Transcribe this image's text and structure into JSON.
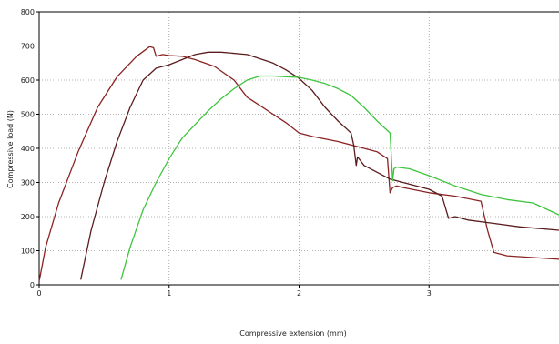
{
  "chart_data": {
    "type": "line",
    "title": "",
    "xlabel": "Compressive extension (mm)",
    "ylabel": "Compressive load (N)",
    "xlim": [
      0,
      4
    ],
    "ylim": [
      0,
      800
    ],
    "x_ticks": [
      0,
      1,
      2,
      3
    ],
    "y_ticks": [
      0,
      100,
      200,
      300,
      400,
      500,
      600,
      700,
      800
    ],
    "x_tick_labels": [
      "0",
      "1",
      "2",
      "3"
    ],
    "y_tick_labels": [
      "0",
      "100",
      "200",
      "300",
      "400",
      "500",
      "600",
      "700",
      "800"
    ],
    "grid": "dotted",
    "legend": "none",
    "series": [
      {
        "color": "#8b2323",
        "x": [
          0,
          0.05,
          0.15,
          0.3,
          0.45,
          0.6,
          0.75,
          0.85,
          0.88,
          0.9,
          0.95,
          1.0,
          1.1,
          1.2,
          1.35,
          1.5,
          1.6,
          1.7,
          1.8,
          1.9,
          2.0,
          2.1,
          2.3,
          2.5,
          2.6,
          2.68,
          2.7,
          2.72,
          2.75,
          2.8,
          3.0,
          3.2,
          3.4,
          3.45,
          3.5,
          3.6,
          3.8,
          4.0
        ],
        "y": [
          10,
          110,
          240,
          390,
          520,
          610,
          670,
          698,
          695,
          670,
          675,
          672,
          670,
          660,
          640,
          600,
          550,
          525,
          500,
          475,
          445,
          435,
          420,
          400,
          390,
          370,
          270,
          285,
          290,
          285,
          270,
          260,
          245,
          160,
          95,
          85,
          80,
          75
        ]
      },
      {
        "color": "#5a1c1c",
        "x": [
          0.32,
          0.35,
          0.4,
          0.5,
          0.6,
          0.7,
          0.8,
          0.9,
          1.0,
          1.1,
          1.2,
          1.3,
          1.4,
          1.6,
          1.8,
          1.9,
          2.0,
          2.1,
          2.2,
          2.3,
          2.4,
          2.42,
          2.44,
          2.45,
          2.47,
          2.5,
          2.6,
          2.7,
          2.8,
          3.0,
          3.1,
          3.15,
          3.2,
          3.3,
          3.5,
          3.7,
          4.0
        ],
        "y": [
          15,
          70,
          160,
          300,
          420,
          520,
          600,
          635,
          645,
          660,
          675,
          682,
          682,
          675,
          650,
          630,
          605,
          570,
          520,
          480,
          445,
          410,
          350,
          375,
          365,
          350,
          330,
          310,
          300,
          280,
          260,
          195,
          200,
          190,
          180,
          170,
          160
        ]
      },
      {
        "color": "#3ec43e",
        "x": [
          0.63,
          0.7,
          0.8,
          0.9,
          1.0,
          1.1,
          1.2,
          1.3,
          1.4,
          1.5,
          1.6,
          1.7,
          1.8,
          1.9,
          2.0,
          2.1,
          2.2,
          2.3,
          2.4,
          2.5,
          2.6,
          2.7,
          2.72,
          2.73,
          2.75,
          2.85,
          3.0,
          3.2,
          3.4,
          3.6,
          3.8,
          4.0
        ],
        "y": [
          15,
          110,
          220,
          300,
          370,
          430,
          470,
          510,
          545,
          575,
          600,
          612,
          612,
          610,
          608,
          600,
          590,
          575,
          555,
          520,
          480,
          445,
          305,
          340,
          345,
          340,
          320,
          290,
          265,
          250,
          240,
          205
        ]
      }
    ]
  }
}
